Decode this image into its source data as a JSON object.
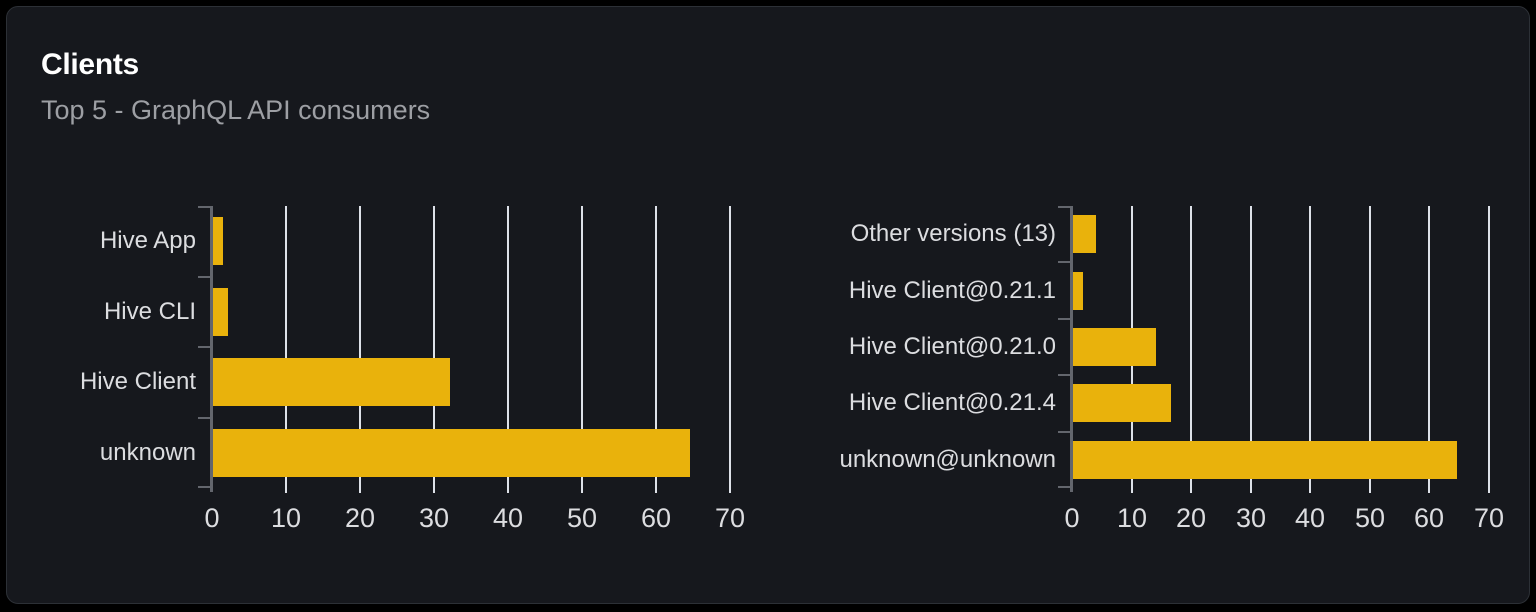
{
  "panel": {
    "title": "Clients",
    "subtitle": "Top 5 - GraphQL API consumers"
  },
  "colors": {
    "page_bg": "#000000",
    "card_bg": "#16181d",
    "card_border": "#2c3036",
    "bar": "#e9b20c",
    "gridline": "#dde1e8",
    "axis": "#63666d",
    "label_text": "#dcdde0",
    "subtitle_text": "#9d9fa4",
    "title_text": "#ffffff"
  },
  "chart_data": [
    {
      "type": "bar",
      "orientation": "horizontal",
      "name": "clients-by-name",
      "categories": [
        "Hive App",
        "Hive CLI",
        "Hive Client",
        "unknown"
      ],
      "values": [
        1.3,
        2,
        32,
        64.4
      ],
      "xlim": [
        0,
        70
      ],
      "xticks": [
        0,
        10,
        20,
        30,
        40,
        50,
        60,
        70
      ],
      "grid": true,
      "legend": "none"
    },
    {
      "type": "bar",
      "orientation": "horizontal",
      "name": "clients-by-version",
      "categories": [
        "Other versions (13)",
        "Hive Client@0.21.1",
        "Hive Client@0.21.0",
        "Hive Client@0.21.4",
        "unknown@unknown"
      ],
      "values": [
        3.9,
        1.7,
        13.9,
        16.5,
        64.5
      ],
      "xlim": [
        0,
        70
      ],
      "xticks": [
        0,
        10,
        20,
        30,
        40,
        50,
        60,
        70
      ],
      "grid": true,
      "legend": "none"
    }
  ]
}
